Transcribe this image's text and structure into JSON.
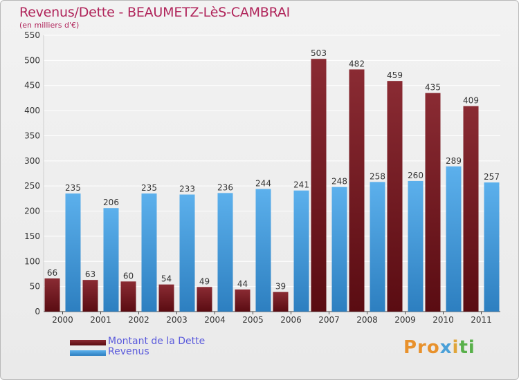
{
  "title": "Revenus/Dette - BEAUMETZ-LèS-CAMBRAI",
  "subtitle": "(en milliers d'€)",
  "logo": {
    "p1": "Pro",
    "p2": "x",
    "p3": "i",
    "p4": "ti"
  },
  "colors": {
    "dette_top": "#8a2b33",
    "dette_bottom": "#5a0c12",
    "revenus_top": "#5cb0ec",
    "revenus_bottom": "#2d7fc0",
    "grid": "#ffffff",
    "axis_text": "#333333"
  },
  "chart_data": {
    "type": "bar",
    "categories": [
      "2000",
      "2001",
      "2002",
      "2003",
      "2004",
      "2005",
      "2006",
      "2007",
      "2008",
      "2009",
      "2010",
      "2011"
    ],
    "series": [
      {
        "name": "Montant de la Dette",
        "values": [
          66,
          63,
          60,
          54,
          49,
          44,
          39,
          503,
          482,
          459,
          435,
          409
        ]
      },
      {
        "name": "Revenus",
        "values": [
          235,
          206,
          235,
          233,
          236,
          244,
          241,
          248,
          258,
          260,
          289,
          257
        ]
      }
    ],
    "ylim": [
      0,
      550
    ],
    "yticks": [
      0,
      50,
      100,
      150,
      200,
      250,
      300,
      350,
      400,
      450,
      500,
      550
    ],
    "grid": true,
    "legend": "bottom-left"
  }
}
